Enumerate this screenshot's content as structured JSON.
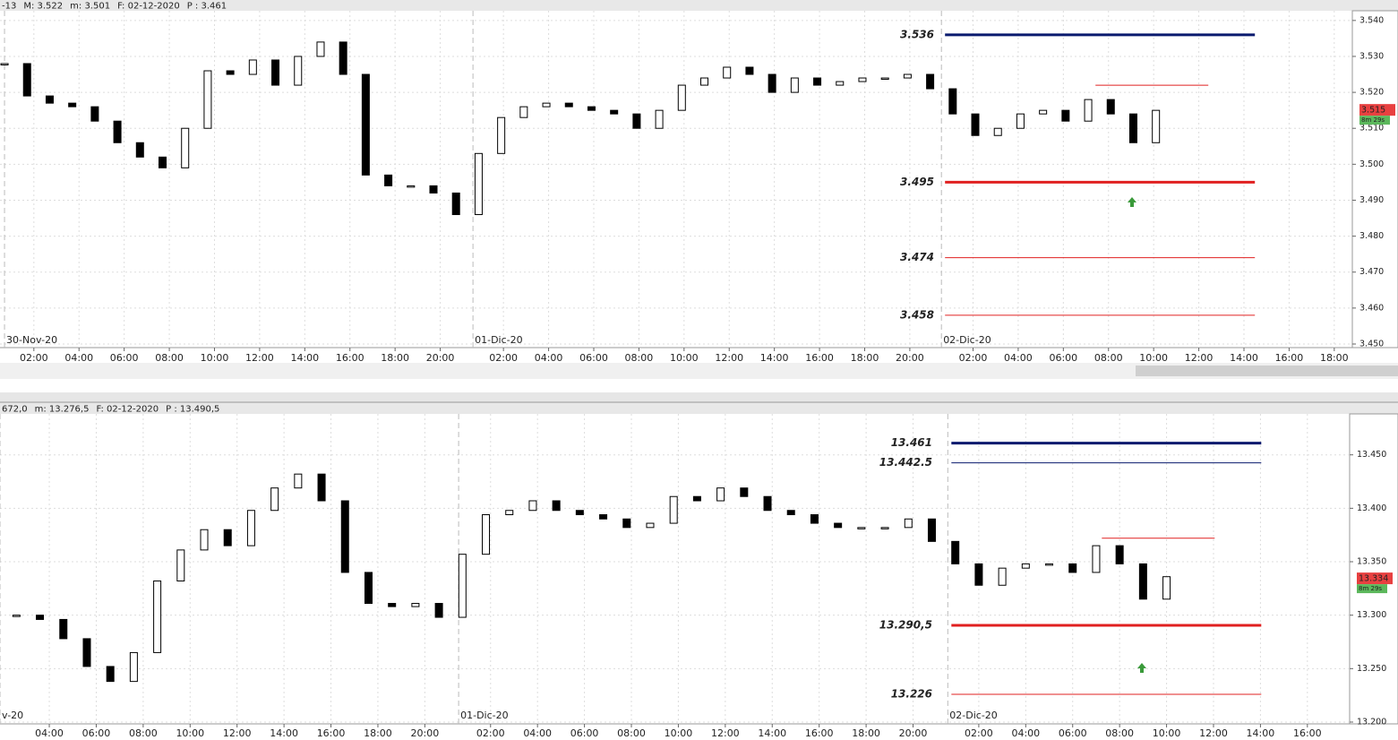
{
  "chart_data": [
    {
      "type": "candlestick",
      "header": [
        {
          "text": "-13",
          "color": "#e02020"
        },
        {
          "text": "M: 3.522",
          "color": "#333333"
        },
        {
          "text": "m: 3.501",
          "color": "#333333"
        },
        {
          "text": "F: 02-12-2020",
          "color": "#333333"
        },
        {
          "text": "P : 3.461",
          "color": "#e02020"
        }
      ],
      "x": [
        0,
        1,
        2,
        3,
        4,
        5,
        6,
        7,
        8,
        9,
        10,
        11,
        12,
        13,
        14,
        15,
        16,
        17,
        18,
        19,
        20,
        21,
        22,
        23,
        24,
        25,
        26,
        27,
        28,
        29,
        30,
        31,
        32,
        33,
        34,
        35,
        36,
        37,
        38,
        39,
        40,
        41,
        42,
        43,
        44,
        45,
        46,
        47,
        48,
        49,
        50,
        51
      ],
      "close": [
        3.528,
        3.519,
        3.517,
        3.516,
        3.512,
        3.506,
        3.502,
        3.499,
        3.51,
        3.526,
        3.525,
        3.529,
        3.522,
        3.53,
        3.534,
        3.525,
        3.497,
        3.494,
        3.494,
        3.492,
        3.486,
        3.503,
        3.513,
        3.516,
        3.517,
        3.516,
        3.515,
        3.514,
        3.51,
        3.515,
        3.522,
        3.524,
        3.527,
        3.525,
        3.52,
        3.524,
        3.522,
        3.523,
        3.524,
        3.524,
        3.525,
        3.521,
        3.514,
        3.508,
        3.51,
        3.514,
        3.515,
        3.512,
        3.518,
        3.514,
        3.506,
        3.515
      ],
      "xlim": [
        -0.2,
        59.7
      ],
      "ylim": [
        3.449,
        3.5427
      ],
      "yticks": [
        {
          "value": 3.54,
          "label": "3.540"
        },
        {
          "value": 3.53,
          "label": "3.530"
        },
        {
          "value": 3.52,
          "label": "3.520"
        },
        {
          "value": 3.51,
          "label": "3.510"
        },
        {
          "value": 3.5,
          "label": "3.500"
        },
        {
          "value": 3.49,
          "label": "3.490"
        },
        {
          "value": 3.48,
          "label": "3.480"
        },
        {
          "value": 3.47,
          "label": "3.470"
        },
        {
          "value": 3.46,
          "label": "3.460"
        },
        {
          "value": 3.45,
          "label": "3.450"
        }
      ],
      "xticks": [
        {
          "value": 1.3,
          "label": "02:00"
        },
        {
          "value": 3.3,
          "label": "04:00"
        },
        {
          "value": 5.3,
          "label": "06:00"
        },
        {
          "value": 7.3,
          "label": "08:00"
        },
        {
          "value": 9.3,
          "label": "10:00"
        },
        {
          "value": 11.3,
          "label": "12:00"
        },
        {
          "value": 13.3,
          "label": "14:00"
        },
        {
          "value": 15.3,
          "label": "16:00"
        },
        {
          "value": 17.3,
          "label": "18:00"
        },
        {
          "value": 19.3,
          "label": "20:00"
        },
        {
          "value": 22.1,
          "label": "02:00"
        },
        {
          "value": 24.1,
          "label": "04:00"
        },
        {
          "value": 26.1,
          "label": "06:00"
        },
        {
          "value": 28.1,
          "label": "08:00"
        },
        {
          "value": 30.1,
          "label": "10:00"
        },
        {
          "value": 32.1,
          "label": "12:00"
        },
        {
          "value": 34.1,
          "label": "14:00"
        },
        {
          "value": 36.1,
          "label": "16:00"
        },
        {
          "value": 38.1,
          "label": "18:00"
        },
        {
          "value": 40.1,
          "label": "20:00"
        },
        {
          "value": 42.9,
          "label": "02:00"
        },
        {
          "value": 44.9,
          "label": "04:00"
        },
        {
          "value": 46.9,
          "label": "06:00"
        },
        {
          "value": 48.9,
          "label": "08:00"
        },
        {
          "value": 50.9,
          "label": "10:00"
        },
        {
          "value": 52.9,
          "label": "12:00"
        },
        {
          "value": 54.9,
          "label": "14:00"
        },
        {
          "value": 56.9,
          "label": "16:00"
        },
        {
          "value": 58.9,
          "label": "18:00"
        }
      ],
      "date_labels": [
        {
          "value": 0,
          "label": "30-Nov-20"
        },
        {
          "value": 20.75,
          "label": "01-Dic-20"
        },
        {
          "value": 41.5,
          "label": "02-Dic-20"
        }
      ],
      "levels": [
        {
          "value": 3.536,
          "label": "3.536",
          "color": "#0a1a6e",
          "width": 3
        },
        {
          "value": 3.522,
          "color": "#e02020",
          "width": 1
        },
        {
          "value": 3.495,
          "label": "3.495",
          "color": "#e02020",
          "width": 3
        },
        {
          "value": 3.474,
          "label": "3.474",
          "color": "#e02020",
          "width": 1
        },
        {
          "value": 3.458,
          "label": "3.458",
          "color": "#e02020",
          "width": 1
        }
      ],
      "last_price": 3.515,
      "timer": "8m 29s",
      "grid": true
    },
    {
      "type": "candlestick",
      "header": [
        {
          "text": "672,0",
          "color": "#333333"
        },
        {
          "text": "m: 13.276,5",
          "color": "#333333"
        },
        {
          "text": "F: 02-12-2020",
          "color": "#333333"
        },
        {
          "text": "P : 13.490,5",
          "color": "#e02020"
        }
      ],
      "x": [
        2,
        3,
        4,
        5,
        6,
        7,
        8,
        9,
        10,
        11,
        12,
        13,
        14,
        15,
        16,
        17,
        18,
        19,
        20,
        21,
        22,
        23,
        24,
        25,
        26,
        27,
        28,
        29,
        30,
        31,
        32,
        33,
        34,
        35,
        36,
        37,
        38,
        39,
        40,
        41,
        42,
        43,
        44,
        45,
        46,
        47,
        48,
        49,
        50,
        51
      ],
      "close": [
        13.3,
        13.296,
        13.278,
        13.252,
        13.238,
        13.265,
        13.332,
        13.361,
        13.38,
        13.365,
        13.398,
        13.419,
        13.432,
        13.407,
        13.34,
        13.311,
        13.308,
        13.311,
        13.298,
        13.357,
        13.394,
        13.398,
        13.407,
        13.398,
        13.394,
        13.39,
        13.382,
        13.386,
        13.411,
        13.407,
        13.419,
        13.411,
        13.398,
        13.394,
        13.386,
        13.382,
        13.382,
        13.382,
        13.39,
        13.369,
        13.348,
        13.328,
        13.344,
        13.348,
        13.348,
        13.34,
        13.365,
        13.348,
        13.315,
        13.336
      ],
      "xlim": [
        1.3,
        58.8
      ],
      "ylim": [
        13.1983,
        13.4883
      ],
      "yticks": [
        {
          "value": 13.45,
          "label": "13.450"
        },
        {
          "value": 13.4,
          "label": "13.400"
        },
        {
          "value": 13.35,
          "label": "13.350"
        },
        {
          "value": 13.3,
          "label": "13.300"
        },
        {
          "value": 13.25,
          "label": "13.250"
        },
        {
          "value": 13.2,
          "label": "13.200"
        }
      ],
      "xticks": [
        {
          "value": 3.4,
          "label": "04:00"
        },
        {
          "value": 5.4,
          "label": "06:00"
        },
        {
          "value": 7.4,
          "label": "08:00"
        },
        {
          "value": 9.4,
          "label": "10:00"
        },
        {
          "value": 11.4,
          "label": "12:00"
        },
        {
          "value": 13.4,
          "label": "14:00"
        },
        {
          "value": 15.4,
          "label": "16:00"
        },
        {
          "value": 17.4,
          "label": "18:00"
        },
        {
          "value": 19.4,
          "label": "20:00"
        },
        {
          "value": 22.2,
          "label": "02:00"
        },
        {
          "value": 24.2,
          "label": "04:00"
        },
        {
          "value": 26.2,
          "label": "06:00"
        },
        {
          "value": 28.2,
          "label": "08:00"
        },
        {
          "value": 30.2,
          "label": "10:00"
        },
        {
          "value": 32.2,
          "label": "12:00"
        },
        {
          "value": 34.2,
          "label": "14:00"
        },
        {
          "value": 36.2,
          "label": "16:00"
        },
        {
          "value": 38.2,
          "label": "18:00"
        },
        {
          "value": 40.2,
          "label": "20:00"
        },
        {
          "value": 43.0,
          "label": "02:00"
        },
        {
          "value": 45.0,
          "label": "04:00"
        },
        {
          "value": 47.0,
          "label": "06:00"
        },
        {
          "value": 49.0,
          "label": "08:00"
        },
        {
          "value": 51.0,
          "label": "10:00"
        },
        {
          "value": 53.0,
          "label": "12:00"
        },
        {
          "value": 55.0,
          "label": "14:00"
        },
        {
          "value": 57.0,
          "label": "16:00"
        }
      ],
      "date_labels": [
        {
          "value": 1.3,
          "label": "v-20"
        },
        {
          "value": 20.84,
          "label": "01-Dic-20"
        },
        {
          "value": 41.68,
          "label": "02-Dic-20"
        }
      ],
      "levels": [
        {
          "value": 13.461,
          "label": "13.461",
          "color": "#0a1a6e",
          "width": 3
        },
        {
          "value": 13.4425,
          "label": "13.442.5",
          "color": "#0a1a6e",
          "width": 1
        },
        {
          "value": 13.372,
          "color": "#e02020",
          "width": 1
        },
        {
          "value": 13.2905,
          "label": "13.290,5",
          "color": "#e02020",
          "width": 3
        },
        {
          "value": 13.226,
          "label": "13.226",
          "color": "#e02020",
          "width": 1
        }
      ],
      "last_price": 13.334,
      "timer": "8m 29s",
      "grid": true
    }
  ]
}
